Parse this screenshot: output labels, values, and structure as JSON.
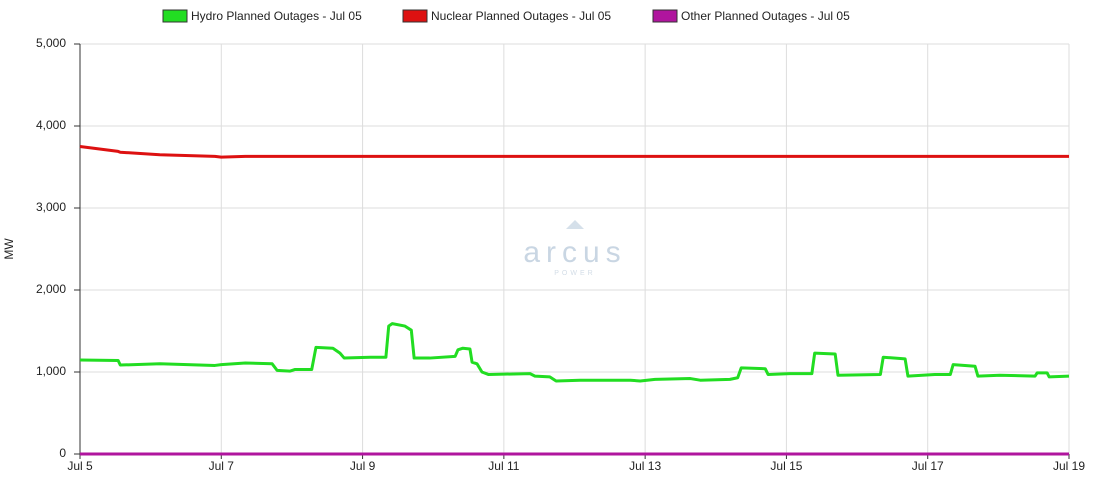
{
  "chart_data": {
    "type": "line",
    "y_label": "MW",
    "watermark": "arcus",
    "watermark_sub": "POWER",
    "x": [
      5.0,
      5.54,
      5.57,
      6.13,
      6.91,
      7.0,
      7.34,
      7.72,
      7.79,
      7.97,
      8.04,
      8.28,
      8.34,
      8.58,
      8.68,
      8.74,
      9.11,
      9.33,
      9.37,
      9.42,
      9.6,
      9.69,
      9.73,
      9.95,
      10.31,
      10.35,
      10.42,
      10.52,
      10.55,
      10.62,
      10.69,
      10.78,
      11.37,
      11.44,
      11.65,
      11.74,
      12.08,
      12.79,
      12.93,
      13.14,
      13.64,
      13.78,
      14.2,
      14.31,
      14.36,
      14.7,
      14.74,
      15.05,
      15.36,
      15.4,
      15.69,
      15.73,
      16.33,
      16.37,
      16.68,
      16.72,
      17.1,
      17.32,
      17.36,
      17.67,
      17.71,
      18.02,
      18.52,
      18.55,
      18.69,
      18.72,
      19.0
    ],
    "series": [
      {
        "name": "Hydro Planned Outages - Jul 05",
        "color": "#22dd22",
        "values": [
          1146,
          1140,
          1085,
          1100,
          1080,
          1090,
          1110,
          1100,
          1020,
          1010,
          1030,
          1030,
          1300,
          1290,
          1230,
          1170,
          1180,
          1180,
          1560,
          1590,
          1560,
          1510,
          1170,
          1170,
          1190,
          1270,
          1290,
          1280,
          1120,
          1100,
          1000,
          970,
          980,
          950,
          940,
          890,
          900,
          900,
          890,
          910,
          920,
          900,
          910,
          930,
          1050,
          1040,
          970,
          980,
          980,
          1230,
          1220,
          960,
          970,
          1180,
          1160,
          950,
          970,
          970,
          1090,
          1070,
          950,
          960,
          950,
          990,
          990,
          940,
          950
        ]
      },
      {
        "name": "Nuclear Planned Outages - Jul 05",
        "color": "#dd1111",
        "values": [
          3750,
          3690,
          3680,
          3650,
          3630,
          3620,
          3630,
          3630,
          3630,
          3630,
          3630,
          3630,
          3630,
          3630,
          3630,
          3630,
          3630,
          3630,
          3630,
          3630,
          3630,
          3630,
          3630,
          3630,
          3630,
          3630,
          3630,
          3630,
          3630,
          3630,
          3630,
          3630,
          3630,
          3630,
          3630,
          3630,
          3630,
          3630,
          3630,
          3630,
          3630,
          3630,
          3630,
          3630,
          3630,
          3630,
          3630,
          3630,
          3630,
          3630,
          3630,
          3630,
          3630,
          3630,
          3630,
          3630,
          3630,
          3630,
          3630,
          3630,
          3630,
          3630,
          3630,
          3630,
          3630,
          3630,
          3630
        ]
      },
      {
        "name": "Other Planned Outages - Jul 05",
        "color": "#b0159e",
        "values": [
          0,
          0,
          0,
          0,
          0,
          0,
          0,
          0,
          0,
          0,
          0,
          0,
          0,
          0,
          0,
          0,
          0,
          0,
          0,
          0,
          0,
          0,
          0,
          0,
          0,
          0,
          0,
          0,
          0,
          0,
          0,
          0,
          0,
          0,
          0,
          0,
          0,
          0,
          0,
          0,
          0,
          0,
          0,
          0,
          0,
          0,
          0,
          0,
          0,
          0,
          0,
          0,
          0,
          0,
          0,
          0,
          0,
          0,
          0,
          0,
          0,
          0,
          0,
          0,
          0,
          0,
          0
        ]
      }
    ],
    "xlim": [
      5,
      19
    ],
    "xticks": [
      {
        "value": 5,
        "label": "Jul 5"
      },
      {
        "value": 7,
        "label": "Jul 7"
      },
      {
        "value": 9,
        "label": "Jul 9"
      },
      {
        "value": 11,
        "label": "Jul 11"
      },
      {
        "value": 13,
        "label": "Jul 13"
      },
      {
        "value": 15,
        "label": "Jul 15"
      },
      {
        "value": 17,
        "label": "Jul 17"
      },
      {
        "value": 19,
        "label": "Jul 19"
      }
    ],
    "ylim": [
      0,
      5000
    ],
    "yticks": [
      0,
      {
        "value": 1000,
        "label": "1,000"
      },
      {
        "value": 2000,
        "label": "2,000"
      },
      {
        "value": 3000,
        "label": "3,000"
      },
      {
        "value": 4000,
        "label": "4,000"
      },
      {
        "value": 5000,
        "label": "5,000"
      }
    ],
    "grid": true,
    "legend": "top"
  }
}
